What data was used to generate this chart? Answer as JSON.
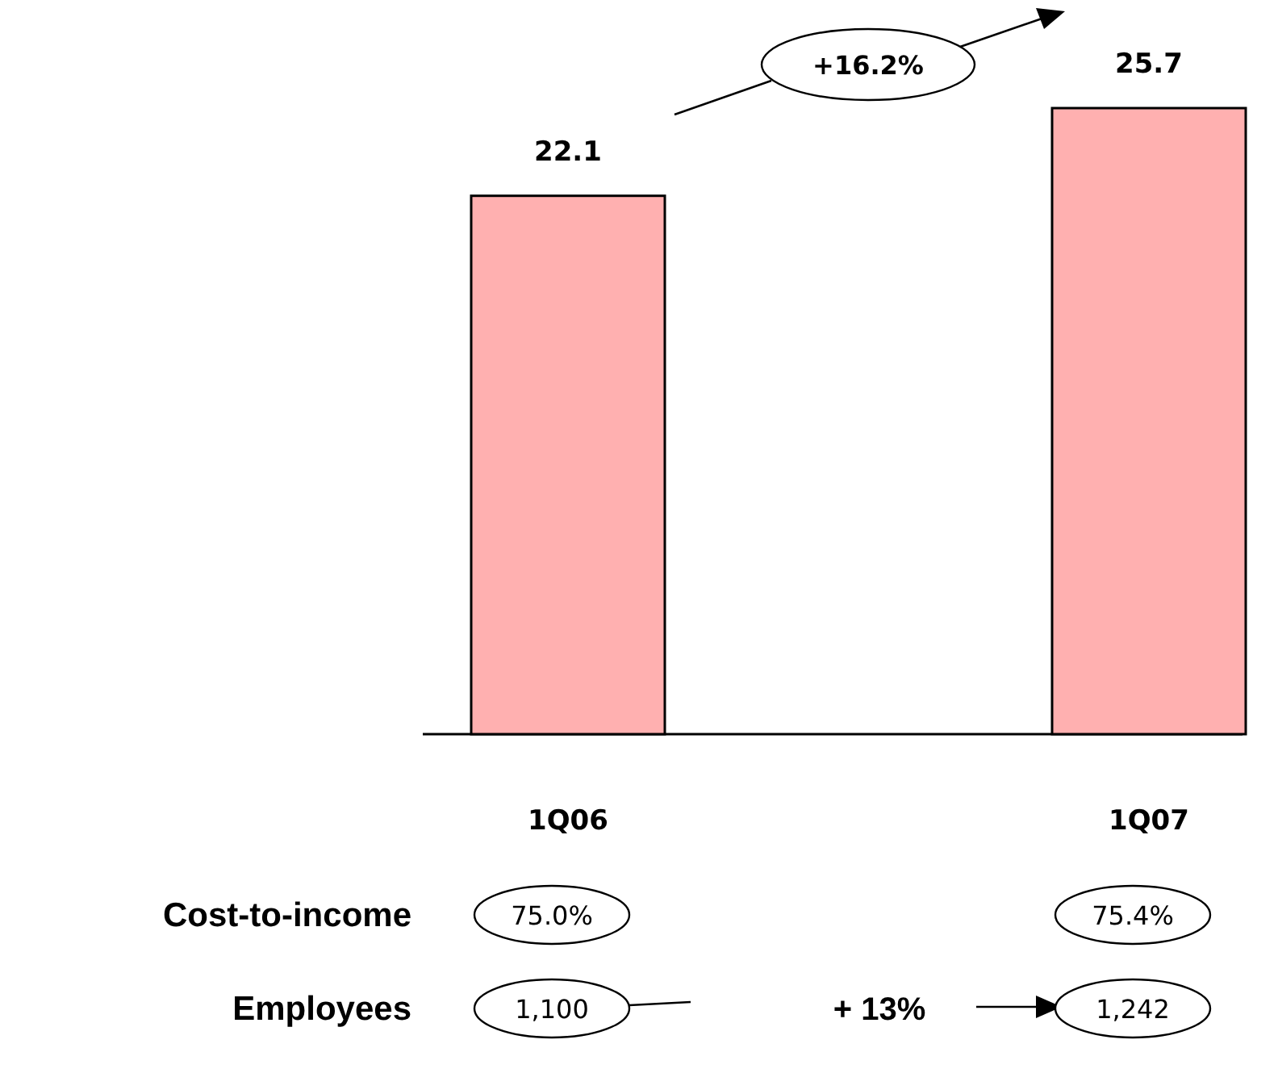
{
  "chart_data": {
    "type": "bar",
    "categories": [
      "1Q06",
      "1Q07"
    ],
    "values": [
      22.1,
      25.7
    ],
    "color": "#ffb0b0",
    "data_labels": true,
    "annotations": [
      "+16.2%",
      "Cost-to-income",
      "75.0%",
      "75.4%",
      "Employees",
      "1,100",
      "1,242",
      "+ 13%"
    ]
  }
}
